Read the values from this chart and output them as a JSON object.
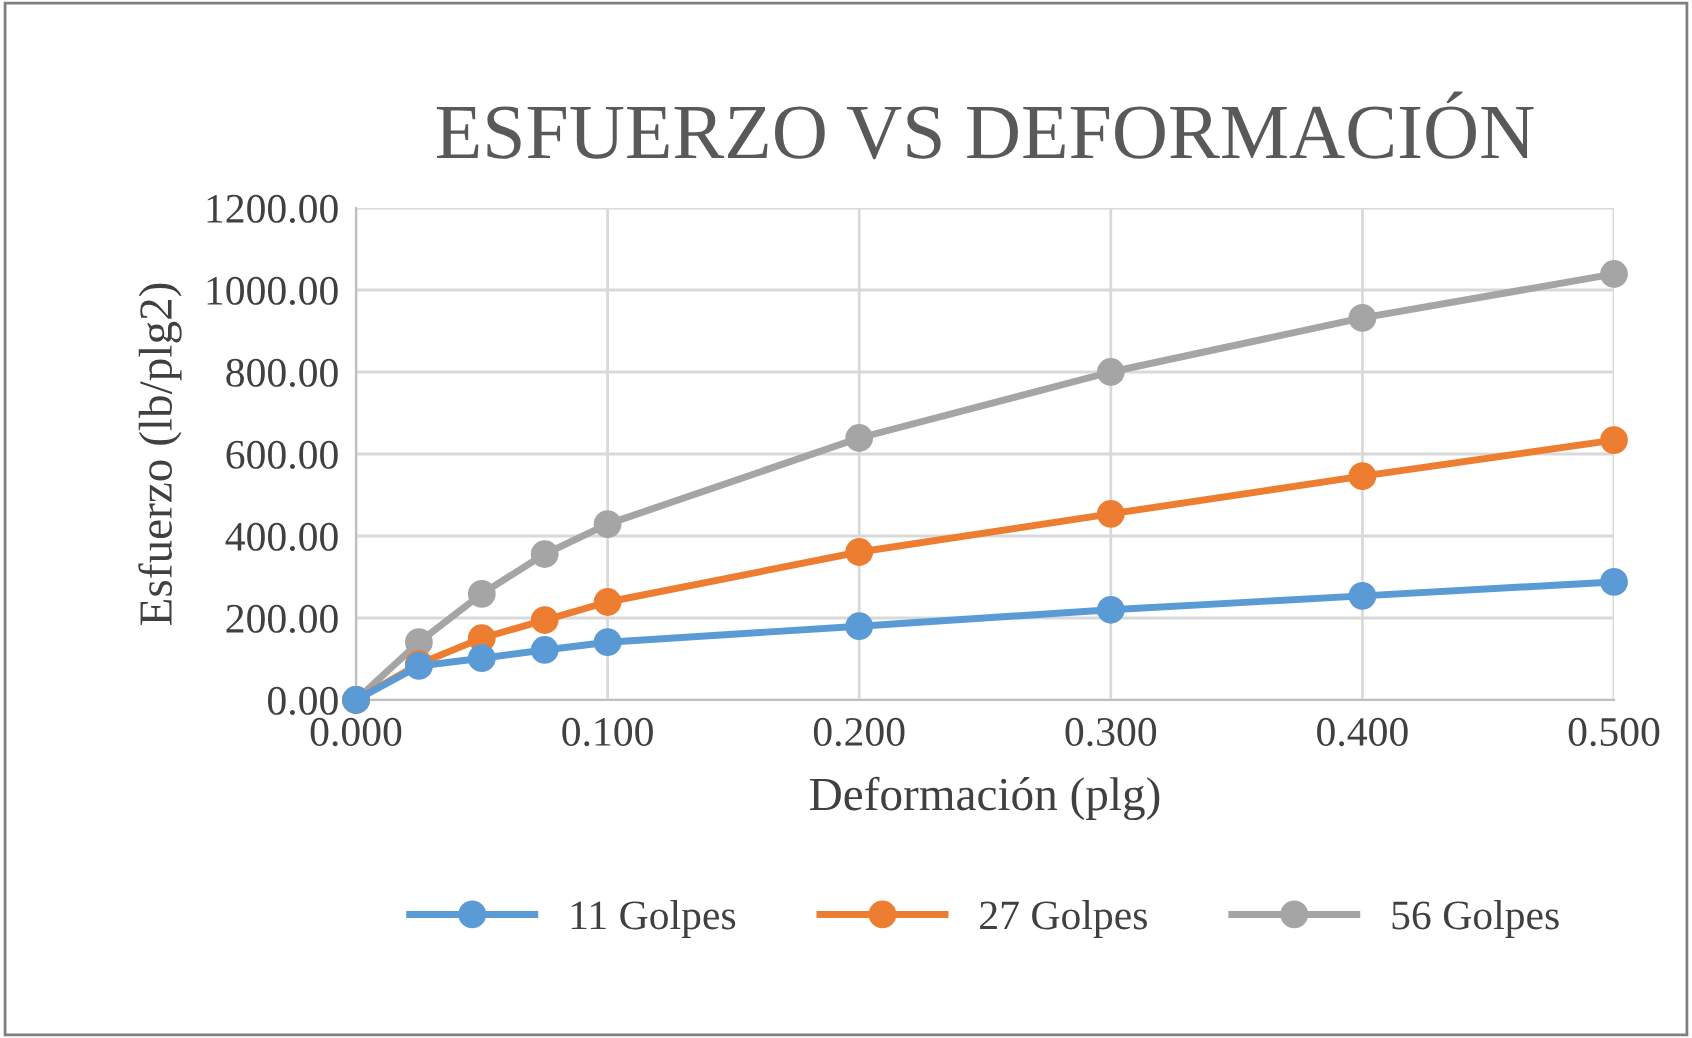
{
  "chart_data": {
    "type": "line",
    "title": "ESFUERZO VS DEFORMACIÓN",
    "xlabel": "Deformación (plg)",
    "ylabel": "Esfuerzo (lb/plg2)",
    "x": [
      0,
      0.025,
      0.05,
      0.075,
      0.1,
      0.2,
      0.3,
      0.4,
      0.5
    ],
    "series": [
      {
        "name": "11 Golpes",
        "color": "#5b9bd5",
        "values": [
          0,
          83,
          102,
          122,
          141,
          180,
          220,
          254,
          288
        ]
      },
      {
        "name": "27 Golpes",
        "color": "#ed7d31",
        "values": [
          0,
          88,
          151,
          195,
          239,
          361,
          454,
          546,
          634
        ]
      },
      {
        "name": "56 Golpes",
        "color": "#a5a5a5",
        "values": [
          0,
          141,
          259,
          356,
          429,
          639,
          800,
          932,
          1039
        ]
      }
    ],
    "xlim": [
      0,
      0.5
    ],
    "xticks": [
      {
        "value": 0,
        "label": "0.000"
      },
      {
        "value": 0.1,
        "label": "0.100"
      },
      {
        "value": 0.2,
        "label": "0.200"
      },
      {
        "value": 0.3,
        "label": "0.300"
      },
      {
        "value": 0.4,
        "label": "0.400"
      },
      {
        "value": 0.5,
        "label": "0.500"
      }
    ],
    "ylim": [
      0,
      1200
    ],
    "yticks": [
      {
        "value": 0,
        "label": "0.00"
      },
      {
        "value": 200,
        "label": "200.00"
      },
      {
        "value": 400,
        "label": "400.00"
      },
      {
        "value": 600,
        "label": "600.00"
      },
      {
        "value": 800,
        "label": "800.00"
      },
      {
        "value": 1000,
        "label": "1000.00"
      },
      {
        "value": 1200,
        "label": "1200.00"
      }
    ],
    "grid": true,
    "legend": "bottom",
    "marker": "circle",
    "line_style": "solid"
  }
}
